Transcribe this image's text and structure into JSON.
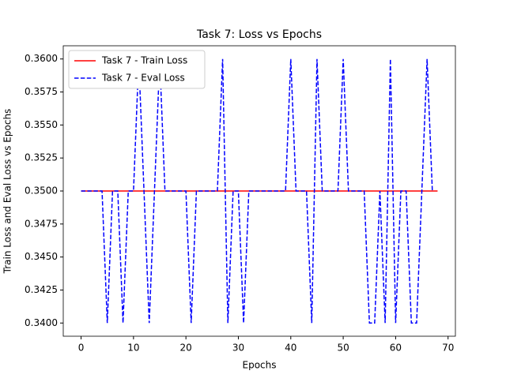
{
  "chart_data": {
    "type": "line",
    "title": "Task 7: Loss vs Epochs",
    "xlabel": "Epochs",
    "ylabel": "Train Loss and Eval Loss vs Epochs",
    "series": [
      {
        "name": "Task 7 - Train Loss",
        "color": "#ff0000",
        "dash": false,
        "x": [
          0,
          1,
          2,
          3,
          4,
          5,
          6,
          7,
          8,
          9,
          10,
          11,
          12,
          13,
          14,
          15,
          16,
          17,
          18,
          19,
          20,
          21,
          22,
          23,
          24,
          25,
          26,
          27,
          28,
          29,
          30,
          31,
          32,
          33,
          34,
          35,
          36,
          37,
          38,
          39,
          40,
          41,
          42,
          43,
          44,
          45,
          46,
          47,
          48,
          49,
          50,
          51,
          52,
          53,
          54,
          55,
          56,
          57,
          58,
          59,
          60,
          61,
          62,
          63,
          64,
          65,
          66,
          67,
          68
        ],
        "values": [
          0.35,
          0.35,
          0.35,
          0.35,
          0.35,
          0.35,
          0.35,
          0.35,
          0.35,
          0.35,
          0.35,
          0.35,
          0.35,
          0.35,
          0.35,
          0.35,
          0.35,
          0.35,
          0.35,
          0.35,
          0.35,
          0.35,
          0.35,
          0.35,
          0.35,
          0.35,
          0.35,
          0.35,
          0.35,
          0.35,
          0.35,
          0.35,
          0.35,
          0.35,
          0.35,
          0.35,
          0.35,
          0.35,
          0.35,
          0.35,
          0.35,
          0.35,
          0.35,
          0.35,
          0.35,
          0.35,
          0.35,
          0.35,
          0.35,
          0.35,
          0.35,
          0.35,
          0.35,
          0.35,
          0.35,
          0.35,
          0.35,
          0.35,
          0.35,
          0.35,
          0.35,
          0.35,
          0.35,
          0.35,
          0.35,
          0.35,
          0.35,
          0.35,
          0.35
        ]
      },
      {
        "name": "Task 7 - Eval Loss",
        "color": "#0000ff",
        "dash": true,
        "x": [
          0,
          1,
          2,
          3,
          4,
          5,
          6,
          7,
          8,
          9,
          10,
          11,
          12,
          13,
          14,
          15,
          16,
          17,
          18,
          19,
          20,
          21,
          22,
          23,
          24,
          25,
          26,
          27,
          28,
          29,
          30,
          31,
          32,
          33,
          34,
          35,
          36,
          37,
          38,
          39,
          40,
          41,
          42,
          43,
          44,
          45,
          46,
          47,
          48,
          49,
          50,
          51,
          52,
          53,
          54,
          55,
          56,
          57,
          58,
          59,
          60,
          61,
          62,
          63,
          64,
          65,
          66,
          67
        ],
        "values": [
          0.35,
          0.35,
          0.35,
          0.35,
          0.35,
          0.34,
          0.35,
          0.35,
          0.34,
          0.35,
          0.35,
          0.36,
          0.35,
          0.34,
          0.35,
          0.36,
          0.35,
          0.35,
          0.35,
          0.35,
          0.35,
          0.34,
          0.35,
          0.35,
          0.35,
          0.35,
          0.35,
          0.36,
          0.34,
          0.35,
          0.35,
          0.34,
          0.35,
          0.35,
          0.35,
          0.35,
          0.35,
          0.35,
          0.35,
          0.35,
          0.36,
          0.35,
          0.35,
          0.35,
          0.34,
          0.36,
          0.35,
          0.35,
          0.35,
          0.35,
          0.36,
          0.35,
          0.35,
          0.35,
          0.35,
          0.34,
          0.34,
          0.35,
          0.34,
          0.36,
          0.34,
          0.35,
          0.35,
          0.34,
          0.34,
          0.35,
          0.36,
          0.35
        ]
      }
    ],
    "xlim": [
      -3.4,
      71.4
    ],
    "xticks": [
      0,
      10,
      20,
      30,
      40,
      50,
      60,
      70
    ],
    "ylim": [
      0.339,
      0.361
    ],
    "yticks": [
      {
        "value": 0.34,
        "label": "0.3400"
      },
      {
        "value": 0.3425,
        "label": "0.3425"
      },
      {
        "value": 0.345,
        "label": "0.3450"
      },
      {
        "value": 0.3475,
        "label": "0.3475"
      },
      {
        "value": 0.35,
        "label": "0.3500"
      },
      {
        "value": 0.3525,
        "label": "0.3525"
      },
      {
        "value": 0.355,
        "label": "0.3550"
      },
      {
        "value": 0.3575,
        "label": "0.3575"
      },
      {
        "value": 0.36,
        "label": "0.3600"
      }
    ],
    "grid": false,
    "legend": "upper left"
  }
}
